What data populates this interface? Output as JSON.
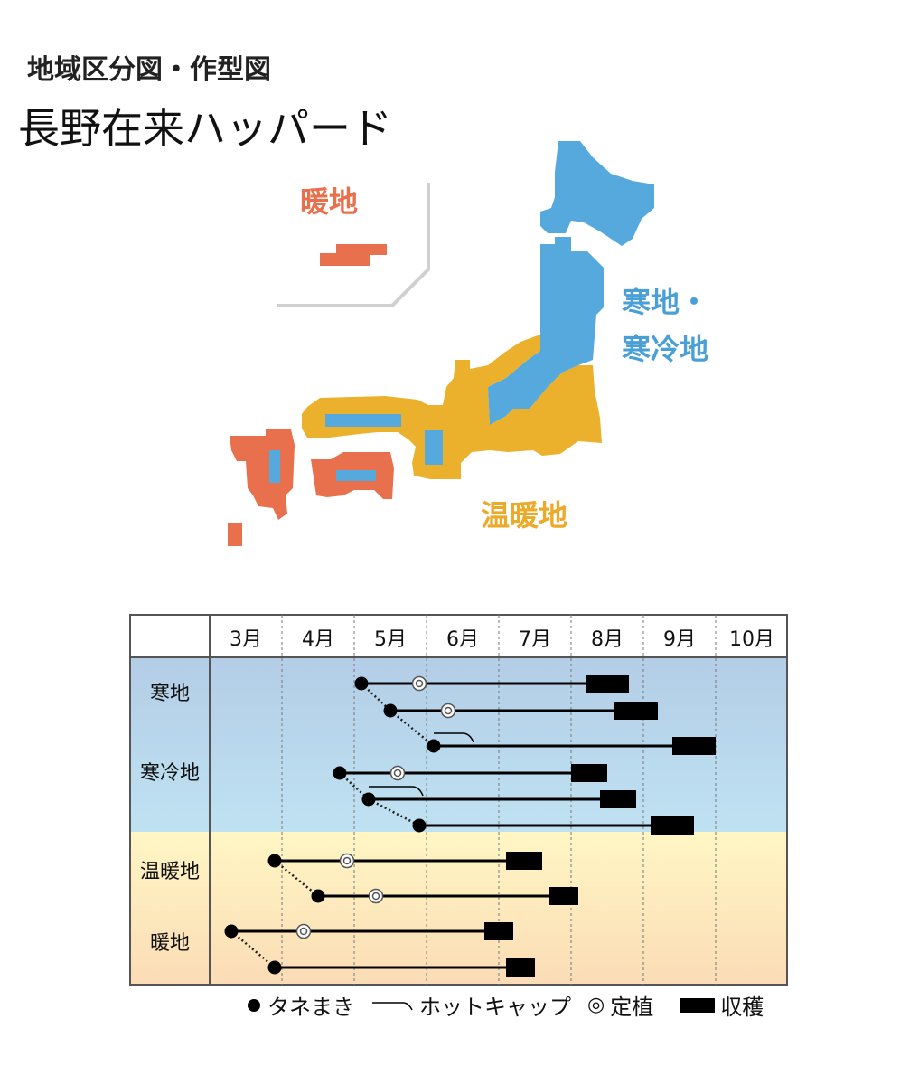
{
  "header": {
    "heading": "地域区分図・作型図",
    "product": "長野在来ハッパード"
  },
  "map": {
    "labels": {
      "danchi": "暖地",
      "kanchi_line1": "寒地・",
      "kanchi_line2": "寒冷地",
      "onchi": "温暖地"
    },
    "colors": {
      "danchi": "#e8704d",
      "kanchi": "#55a9dc",
      "onchi": "#ebb02c"
    }
  },
  "chart_data": {
    "type": "table",
    "months": [
      "3月",
      "4月",
      "5月",
      "6月",
      "7月",
      "8月",
      "9月",
      "10月"
    ],
    "region_labels": [
      "寒地",
      "寒冷地",
      "温暖地",
      "暖地"
    ],
    "rows": [
      {
        "sow": 5.1,
        "hotcap": null,
        "transplant": 5.9,
        "harvest": [
          8.2,
          8.8
        ]
      },
      {
        "sow": 5.5,
        "hotcap": null,
        "transplant": 6.3,
        "harvest": [
          8.6,
          9.2
        ]
      },
      {
        "sow": 6.1,
        "hotcap": [
          6.1,
          6.6
        ],
        "transplant": null,
        "harvest": [
          9.4,
          10.0
        ]
      },
      {
        "sow": 4.8,
        "hotcap": null,
        "transplant": 5.6,
        "harvest": [
          8.0,
          8.5
        ]
      },
      {
        "sow": 5.2,
        "hotcap": [
          5.2,
          5.9
        ],
        "transplant": null,
        "harvest": [
          8.4,
          8.9
        ]
      },
      {
        "sow": 5.9,
        "hotcap": null,
        "transplant": null,
        "harvest": [
          9.1,
          9.7
        ]
      },
      {
        "sow": 3.9,
        "hotcap": null,
        "transplant": 4.9,
        "harvest": [
          7.1,
          7.6
        ]
      },
      {
        "sow": 4.5,
        "hotcap": null,
        "transplant": 5.3,
        "harvest": [
          7.7,
          8.1
        ]
      },
      {
        "sow": 3.3,
        "hotcap": null,
        "transplant": 4.3,
        "harvest": [
          6.8,
          7.2
        ]
      },
      {
        "sow": 3.9,
        "hotcap": null,
        "transplant": null,
        "harvest": [
          7.1,
          7.5
        ]
      }
    ],
    "sow_links": [
      [
        0,
        1
      ],
      [
        1,
        2
      ],
      [
        3,
        4
      ],
      [
        4,
        5
      ],
      [
        6,
        7
      ],
      [
        8,
        9
      ]
    ],
    "legend": {
      "sow": "タネまき",
      "hotcap": "ホットキャップ",
      "transplant": "定植",
      "harvest": "収穫"
    },
    "colors": {
      "cold_band_top": "#b3cde6",
      "cold_band_bottom": "#bfe2f2",
      "warm_band_top": "#fff6c4",
      "warm_band_bottom": "#fbdcb6"
    }
  }
}
